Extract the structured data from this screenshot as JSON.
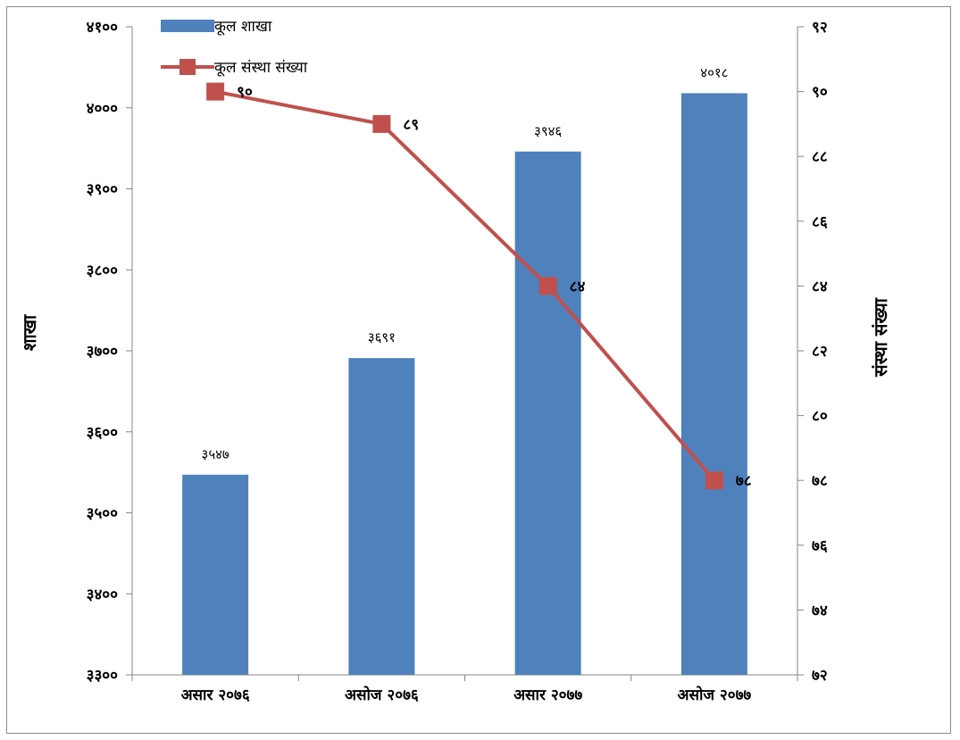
{
  "chart_data": {
    "type": "bar+line",
    "categories": [
      "असार २०७६",
      "असोज २०७६",
      "असार २०७७",
      "असोज २०७७"
    ],
    "series": [
      {
        "name": "कूल शाखा",
        "type": "bar",
        "axis": "left",
        "color": "#4f81bd",
        "values": [
          3547,
          3691,
          3946,
          4018
        ],
        "value_labels": [
          "३५४७",
          "३६९१",
          "३९४६",
          "४०१८"
        ]
      },
      {
        "name": "कूल संस्था संख्या",
        "type": "line",
        "axis": "right",
        "color": "#c0504d",
        "values": [
          90,
          89,
          84,
          78
        ],
        "value_labels": [
          "९०",
          "८९",
          "८४",
          "७८"
        ]
      }
    ],
    "y_left": {
      "label": "शाखा",
      "ylim": [
        3300,
        4100
      ],
      "ticks": [
        3300,
        3400,
        3500,
        3600,
        3700,
        3800,
        3900,
        4000,
        4100
      ],
      "tick_labels": [
        "३३००",
        "३४००",
        "३५००",
        "३६००",
        "३७००",
        "३८००",
        "३९००",
        "४०००",
        "४१००"
      ]
    },
    "y_right": {
      "label": "संस्था संख्या",
      "ylim": [
        72,
        92
      ],
      "ticks": [
        72,
        74,
        76,
        78,
        80,
        82,
        84,
        86,
        88,
        90,
        92
      ],
      "tick_labels": [
        "७२",
        "७४",
        "७६",
        "७८",
        "८०",
        "८२",
        "८४",
        "८६",
        "८८",
        "९०",
        "९२"
      ]
    },
    "grid": false,
    "legend_position": "top-left"
  }
}
